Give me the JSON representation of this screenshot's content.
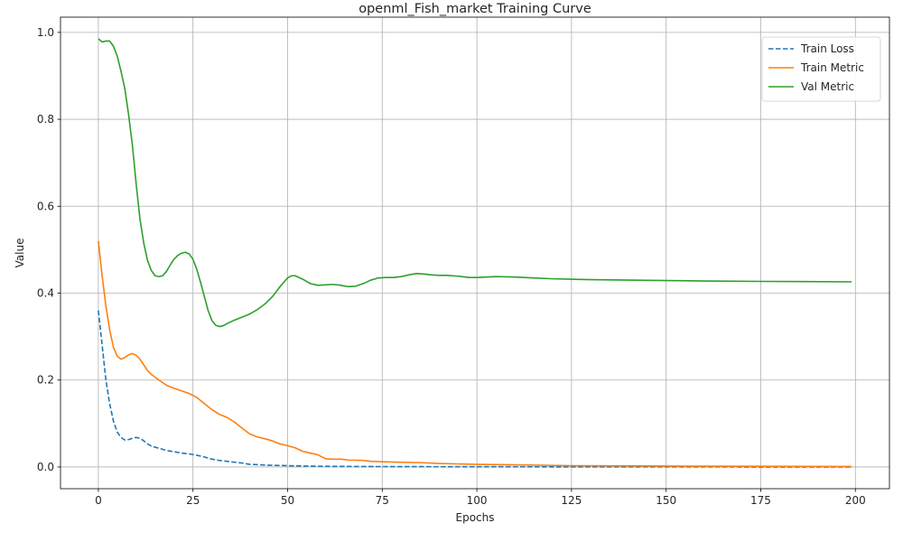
{
  "chart_data": {
    "type": "line",
    "title": "openml_Fish_market Training Curve",
    "xlabel": "Epochs",
    "ylabel": "Value",
    "xlim": [
      -10,
      209
    ],
    "ylim": [
      -0.05,
      1.035
    ],
    "xticks": [
      0,
      25,
      50,
      75,
      100,
      125,
      150,
      175,
      200
    ],
    "yticks": [
      0.0,
      0.2,
      0.4,
      0.6,
      0.8,
      1.0
    ],
    "grid": true,
    "legend_position": "top-right",
    "series": [
      {
        "name": "Train Loss",
        "color": "#1f77b4",
        "dash": "dashed",
        "points": [
          [
            0,
            0.36
          ],
          [
            1,
            0.28
          ],
          [
            2,
            0.2
          ],
          [
            3,
            0.145
          ],
          [
            4,
            0.105
          ],
          [
            5,
            0.08
          ],
          [
            6,
            0.068
          ],
          [
            7,
            0.062
          ],
          [
            8,
            0.063
          ],
          [
            9,
            0.066
          ],
          [
            10,
            0.068
          ],
          [
            11,
            0.066
          ],
          [
            12,
            0.06
          ],
          [
            13,
            0.053
          ],
          [
            14,
            0.048
          ],
          [
            16,
            0.043
          ],
          [
            18,
            0.038
          ],
          [
            20,
            0.035
          ],
          [
            22,
            0.032
          ],
          [
            24,
            0.03
          ],
          [
            26,
            0.027
          ],
          [
            28,
            0.023
          ],
          [
            30,
            0.018
          ],
          [
            32,
            0.015
          ],
          [
            34,
            0.013
          ],
          [
            36,
            0.011
          ],
          [
            38,
            0.009
          ],
          [
            40,
            0.006
          ],
          [
            45,
            0.004
          ],
          [
            50,
            0.003
          ],
          [
            55,
            0.002
          ],
          [
            60,
            0.0015
          ],
          [
            70,
            0.001
          ],
          [
            80,
            0.0008
          ],
          [
            100,
            0.0005
          ],
          [
            125,
            0.0003
          ],
          [
            150,
            0.0002
          ],
          [
            175,
            0.0001
          ],
          [
            199,
            0.0001
          ]
        ]
      },
      {
        "name": "Train Metric",
        "color": "#ff7f0e",
        "dash": "solid",
        "points": [
          [
            0,
            0.52
          ],
          [
            1,
            0.44
          ],
          [
            2,
            0.37
          ],
          [
            3,
            0.315
          ],
          [
            4,
            0.275
          ],
          [
            5,
            0.255
          ],
          [
            6,
            0.248
          ],
          [
            7,
            0.252
          ],
          [
            8,
            0.258
          ],
          [
            9,
            0.261
          ],
          [
            10,
            0.257
          ],
          [
            11,
            0.248
          ],
          [
            12,
            0.235
          ],
          [
            13,
            0.222
          ],
          [
            14,
            0.213
          ],
          [
            16,
            0.2
          ],
          [
            18,
            0.188
          ],
          [
            20,
            0.181
          ],
          [
            22,
            0.175
          ],
          [
            24,
            0.169
          ],
          [
            26,
            0.16
          ],
          [
            28,
            0.146
          ],
          [
            30,
            0.132
          ],
          [
            32,
            0.121
          ],
          [
            34,
            0.114
          ],
          [
            36,
            0.103
          ],
          [
            38,
            0.089
          ],
          [
            40,
            0.076
          ],
          [
            42,
            0.069
          ],
          [
            44,
            0.065
          ],
          [
            46,
            0.06
          ],
          [
            48,
            0.053
          ],
          [
            50,
            0.049
          ],
          [
            52,
            0.044
          ],
          [
            54,
            0.036
          ],
          [
            56,
            0.032
          ],
          [
            58,
            0.028
          ],
          [
            60,
            0.019
          ],
          [
            62,
            0.018
          ],
          [
            64,
            0.018
          ],
          [
            66,
            0.016
          ],
          [
            70,
            0.015
          ],
          [
            72,
            0.013
          ],
          [
            75,
            0.012
          ],
          [
            80,
            0.011
          ],
          [
            85,
            0.01
          ],
          [
            90,
            0.008
          ],
          [
            100,
            0.006
          ],
          [
            110,
            0.005
          ],
          [
            125,
            0.003
          ],
          [
            150,
            0.002
          ],
          [
            175,
            0.0015
          ],
          [
            199,
            0.001
          ]
        ]
      },
      {
        "name": "Val Metric",
        "color": "#2ca02c",
        "dash": "solid",
        "points": [
          [
            0,
            0.985
          ],
          [
            1,
            0.978
          ],
          [
            2,
            0.98
          ],
          [
            3,
            0.98
          ],
          [
            4,
            0.968
          ],
          [
            5,
            0.945
          ],
          [
            6,
            0.91
          ],
          [
            7,
            0.87
          ],
          [
            8,
            0.81
          ],
          [
            9,
            0.74
          ],
          [
            10,
            0.65
          ],
          [
            11,
            0.57
          ],
          [
            12,
            0.515
          ],
          [
            13,
            0.475
          ],
          [
            14,
            0.452
          ],
          [
            15,
            0.44
          ],
          [
            16,
            0.438
          ],
          [
            17,
            0.44
          ],
          [
            18,
            0.45
          ],
          [
            19,
            0.465
          ],
          [
            20,
            0.478
          ],
          [
            21,
            0.487
          ],
          [
            22,
            0.492
          ],
          [
            23,
            0.494
          ],
          [
            24,
            0.49
          ],
          [
            25,
            0.478
          ],
          [
            26,
            0.455
          ],
          [
            27,
            0.425
          ],
          [
            28,
            0.392
          ],
          [
            29,
            0.36
          ],
          [
            30,
            0.337
          ],
          [
            31,
            0.326
          ],
          [
            32,
            0.323
          ],
          [
            33,
            0.325
          ],
          [
            34,
            0.33
          ],
          [
            36,
            0.338
          ],
          [
            38,
            0.345
          ],
          [
            40,
            0.352
          ],
          [
            42,
            0.362
          ],
          [
            44,
            0.375
          ],
          [
            46,
            0.392
          ],
          [
            48,
            0.415
          ],
          [
            50,
            0.435
          ],
          [
            51,
            0.44
          ],
          [
            52,
            0.44
          ],
          [
            54,
            0.432
          ],
          [
            56,
            0.422
          ],
          [
            58,
            0.418
          ],
          [
            60,
            0.419
          ],
          [
            62,
            0.42
          ],
          [
            64,
            0.418
          ],
          [
            66,
            0.415
          ],
          [
            68,
            0.416
          ],
          [
            70,
            0.422
          ],
          [
            72,
            0.43
          ],
          [
            74,
            0.435
          ],
          [
            76,
            0.436
          ],
          [
            78,
            0.436
          ],
          [
            80,
            0.438
          ],
          [
            82,
            0.442
          ],
          [
            84,
            0.445
          ],
          [
            86,
            0.444
          ],
          [
            88,
            0.442
          ],
          [
            90,
            0.441
          ],
          [
            92,
            0.441
          ],
          [
            95,
            0.439
          ],
          [
            98,
            0.436
          ],
          [
            100,
            0.436
          ],
          [
            105,
            0.438
          ],
          [
            110,
            0.437
          ],
          [
            115,
            0.435
          ],
          [
            120,
            0.433
          ],
          [
            125,
            0.432
          ],
          [
            130,
            0.431
          ],
          [
            140,
            0.43
          ],
          [
            150,
            0.429
          ],
          [
            160,
            0.428
          ],
          [
            175,
            0.427
          ],
          [
            199,
            0.426
          ]
        ]
      }
    ]
  }
}
